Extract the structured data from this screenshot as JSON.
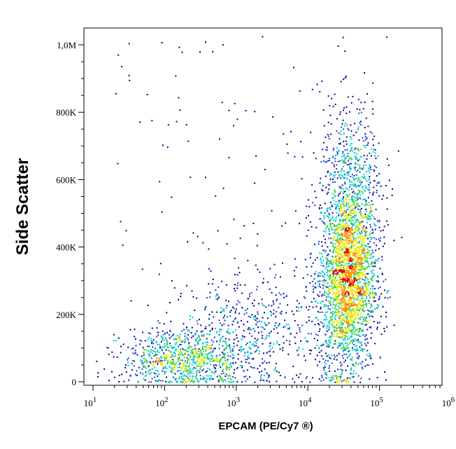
{
  "chart_data": {
    "type": "scatter",
    "style": "density pseudocolor dot plot (flow cytometry)",
    "title": "",
    "xlabel": "EPCAM (PE/Cy7 ®)",
    "ylabel": "Side Scatter",
    "x_scale": "log",
    "xlim": [
      10,
      1000000
    ],
    "ylim": [
      0,
      1050000
    ],
    "x_ticks": [
      {
        "value": 10,
        "base": "10",
        "exp": "1"
      },
      {
        "value": 100,
        "base": "10",
        "exp": "2"
      },
      {
        "value": 1000,
        "base": "10",
        "exp": "3"
      },
      {
        "value": 10000,
        "base": "10",
        "exp": "4"
      },
      {
        "value": 100000,
        "base": "10",
        "exp": "5"
      },
      {
        "value": 1000000,
        "base": "10",
        "exp": "6"
      }
    ],
    "y_ticks": [
      {
        "value": 0,
        "label": "0"
      },
      {
        "value": 200000,
        "label": "200K"
      },
      {
        "value": 400000,
        "label": "400K"
      },
      {
        "value": 600000,
        "label": "600K"
      },
      {
        "value": 800000,
        "label": "800K"
      },
      {
        "value": 1000000,
        "label": "1,0M"
      }
    ],
    "density_colors": [
      "#00008b",
      "#1c3fd6",
      "#00c8c8",
      "#40d040",
      "#e8e800",
      "#ff8c00",
      "#e00000"
    ],
    "populations": [
      {
        "x_log_center": 4.55,
        "y_center": 310000,
        "x_log_sd": 0.2,
        "y_sd": 140000,
        "count": 2600
      },
      {
        "x_log_center": 4.6,
        "y_center": 620000,
        "x_log_sd": 0.22,
        "y_sd": 110000,
        "count": 450
      },
      {
        "x_log_center": 2.3,
        "y_center": 70000,
        "x_log_sd": 0.45,
        "y_sd": 45000,
        "count": 900
      },
      {
        "x_log_center": 3.2,
        "y_center": 160000,
        "x_log_sd": 0.6,
        "y_sd": 90000,
        "count": 500
      }
    ],
    "grid": false,
    "legend": "none"
  }
}
